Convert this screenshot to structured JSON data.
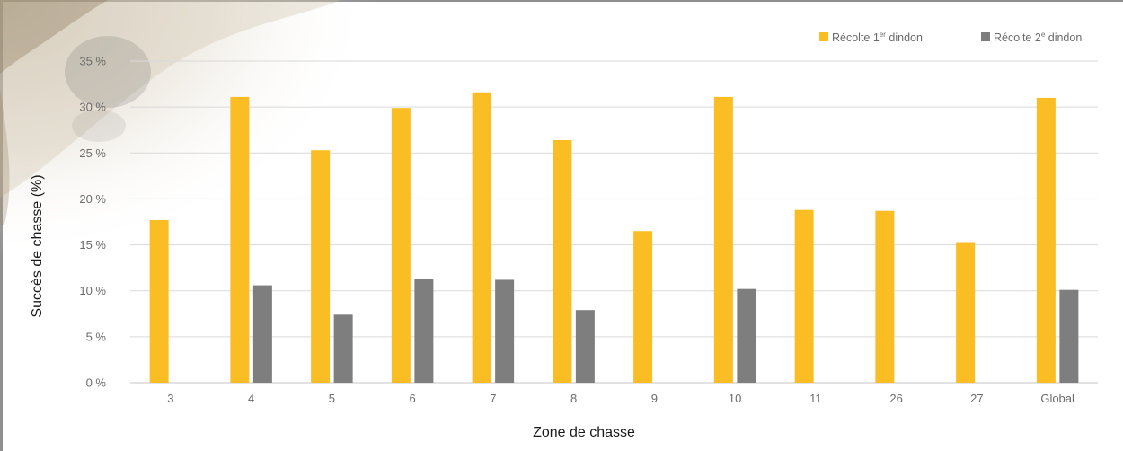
{
  "chart_data": {
    "type": "bar",
    "xlabel": "Zone de chasse",
    "ylabel": "Succès de chasse (%)",
    "ylim": [
      0,
      35
    ],
    "ytick_values": [
      0,
      5,
      10,
      15,
      20,
      25,
      30,
      35
    ],
    "ytick_labels": [
      "0 %",
      "5 %",
      "10 %",
      "15 %",
      "20 %",
      "25 %",
      "30 %",
      "35 %"
    ],
    "categories": [
      "3",
      "4",
      "5",
      "6",
      "7",
      "8",
      "9",
      "10",
      "11",
      "26",
      "27",
      "Global"
    ],
    "grid": true,
    "legend_position": "top-right",
    "series": [
      {
        "name": "Récolte 1er dindon",
        "legend_base": "Récolte 1",
        "legend_sup": "er",
        "legend_rest": " dindon",
        "color": "#fbbd24",
        "values": [
          17.7,
          31.1,
          25.3,
          29.9,
          31.6,
          26.4,
          16.5,
          31.1,
          18.8,
          18.7,
          15.3,
          31.0
        ]
      },
      {
        "name": "Récolte 2e dindon",
        "legend_base": "Récolte 2",
        "legend_sup": "e",
        "legend_rest": " dindon",
        "color": "#7e7e7e",
        "values": [
          null,
          10.6,
          7.4,
          11.3,
          11.2,
          7.9,
          null,
          10.2,
          null,
          null,
          null,
          10.1
        ]
      }
    ]
  }
}
